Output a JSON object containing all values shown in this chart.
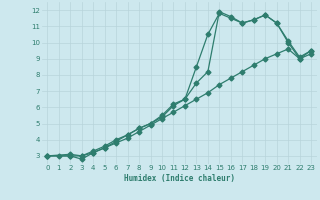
{
  "xlabel": "Humidex (Indice chaleur)",
  "bg_color": "#cde8ee",
  "grid_color": "#b8d4db",
  "line_color": "#2e7d6e",
  "line1_x": [
    0,
    1,
    2,
    3,
    4,
    5,
    6,
    7,
    8,
    9,
    10,
    11,
    12,
    13,
    14,
    15,
    16,
    17,
    18,
    19,
    20,
    21,
    22,
    23
  ],
  "line1_y": [
    3.0,
    3.0,
    3.0,
    3.0,
    3.2,
    3.5,
    3.8,
    4.1,
    4.5,
    4.9,
    5.3,
    5.7,
    6.1,
    6.5,
    6.9,
    7.4,
    7.8,
    8.2,
    8.6,
    9.0,
    9.3,
    9.6,
    9.0,
    9.5
  ],
  "line2_x": [
    0,
    2,
    3,
    4,
    5,
    6,
    7,
    8,
    9,
    10,
    11,
    12,
    13,
    14,
    15,
    16,
    17,
    18,
    19,
    20,
    21,
    22,
    23
  ],
  "line2_y": [
    3.0,
    3.0,
    2.8,
    3.2,
    3.5,
    3.9,
    4.3,
    4.7,
    5.0,
    5.5,
    6.2,
    6.5,
    7.5,
    8.2,
    11.9,
    11.6,
    11.2,
    11.4,
    11.7,
    11.2,
    10.0,
    9.0,
    9.3
  ],
  "line3_x": [
    0,
    2,
    3,
    4,
    5,
    6,
    7,
    8,
    9,
    10,
    11,
    12,
    13,
    14,
    15,
    16,
    17,
    18,
    19,
    20,
    21,
    22,
    23
  ],
  "line3_y": [
    3.0,
    3.1,
    3.0,
    3.3,
    3.6,
    4.0,
    4.3,
    4.7,
    5.0,
    5.4,
    6.1,
    6.5,
    8.5,
    10.5,
    11.8,
    11.5,
    11.2,
    11.4,
    11.7,
    11.2,
    10.1,
    9.1,
    9.5
  ],
  "ylim": [
    2.5,
    12.5
  ],
  "xlim": [
    -0.5,
    23.5
  ],
  "yticks": [
    3,
    4,
    5,
    6,
    7,
    8,
    9,
    10,
    11,
    12
  ],
  "xticks": [
    0,
    1,
    2,
    3,
    4,
    5,
    6,
    7,
    8,
    9,
    10,
    11,
    12,
    13,
    14,
    15,
    16,
    17,
    18,
    19,
    20,
    21,
    22,
    23
  ]
}
